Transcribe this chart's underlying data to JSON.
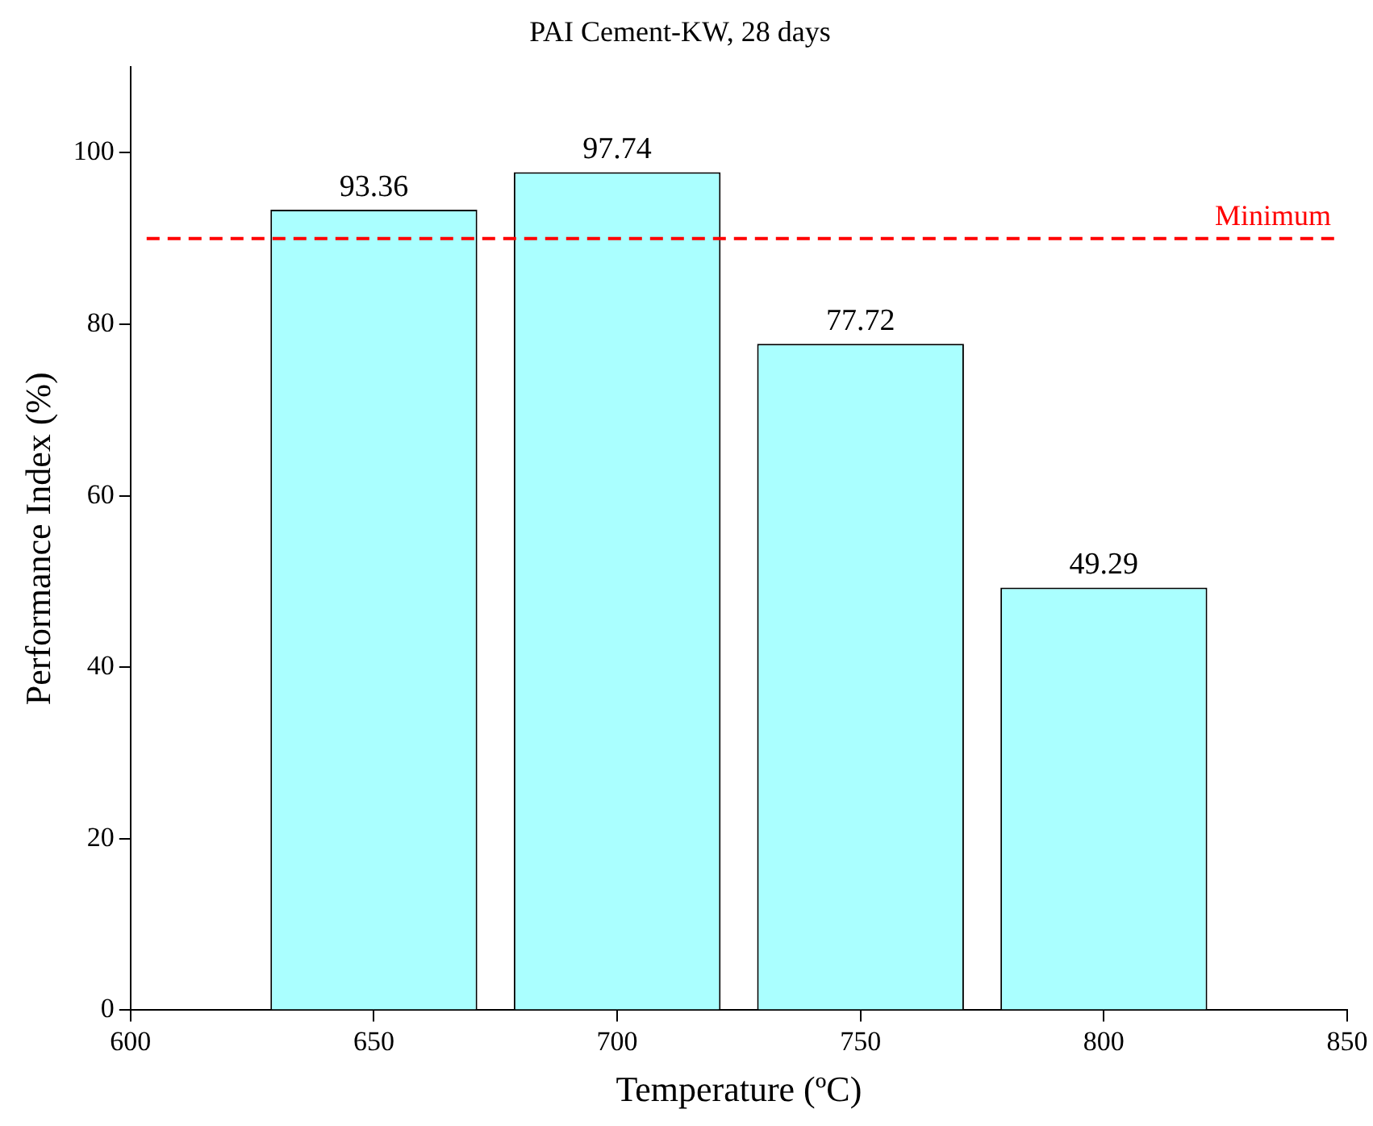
{
  "chart_data": {
    "type": "bar",
    "title": "PAI Cement-KW, 28 days",
    "xlabel": "Temperature (ºC)",
    "ylabel": "Performance Index (%)",
    "x": [
      650,
      700,
      750,
      800
    ],
    "values": [
      93.36,
      97.74,
      77.72,
      49.29
    ],
    "color": "#aaffff",
    "xlim": [
      600,
      850
    ],
    "xticks": [
      600,
      650,
      700,
      750,
      800,
      850
    ],
    "ylim": [
      0,
      110
    ],
    "yticks": [
      0,
      20,
      40,
      60,
      80,
      100
    ],
    "ref_lines": [
      {
        "axis": "y",
        "value": 90,
        "label": "Minimum",
        "color": "#ff0000",
        "line_style": "dashed"
      }
    ],
    "data_labels": true,
    "grid": false,
    "legend": false
  }
}
